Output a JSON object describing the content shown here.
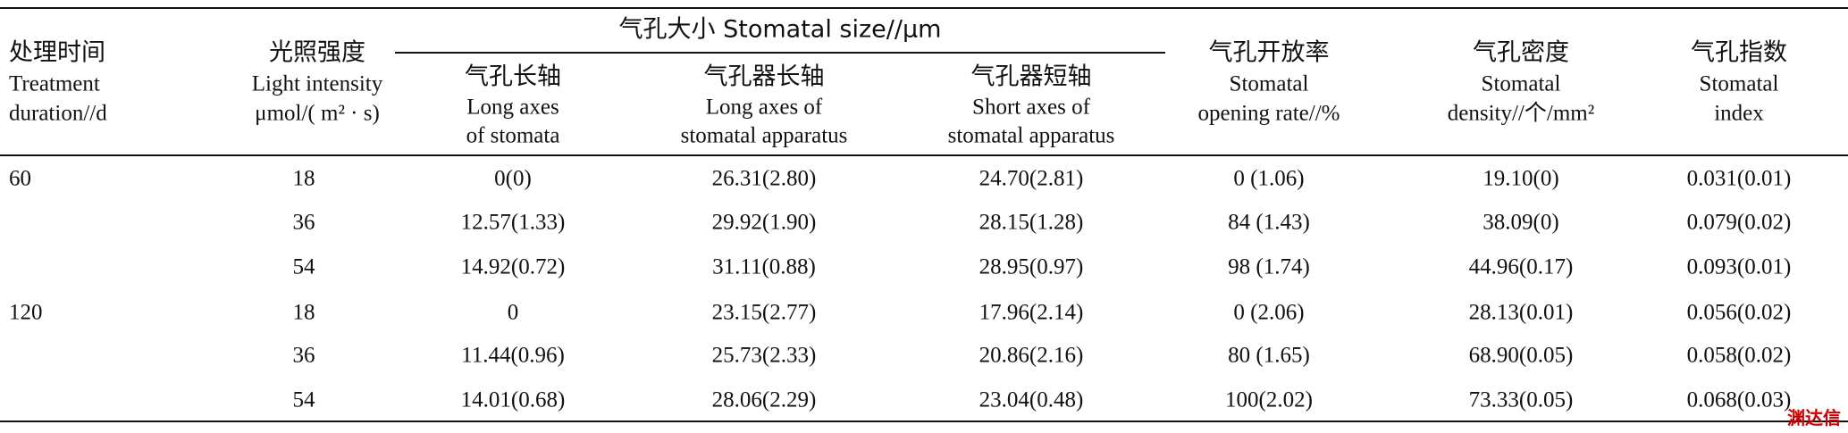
{
  "table": {
    "columns": [
      {
        "lines": [
          "处理时间",
          "Treatment",
          "duration//d"
        ]
      },
      {
        "lines": [
          "光照强度",
          "Light intensity",
          "μmol/( m² · s)"
        ]
      },
      {
        "lines": [
          "气孔长轴",
          "Long axes",
          "of stomata"
        ]
      },
      {
        "lines": [
          "气孔器长轴",
          "Long axes of",
          "stomatal apparatus"
        ]
      },
      {
        "lines": [
          "气孔器短轴",
          "Short axes of",
          "stomatal apparatus"
        ]
      },
      {
        "lines": [
          "气孔开放率",
          "Stomatal",
          "opening rate//%"
        ]
      },
      {
        "lines": [
          "气孔密度",
          "Stomatal",
          "density//个/mm²"
        ]
      },
      {
        "lines": [
          "气孔指数",
          "Stomatal",
          "index"
        ]
      }
    ],
    "group_header": "气孔大小 Stomatal size//μm",
    "rows": [
      [
        "60",
        "18",
        "0(0)",
        "26.31(2.80)",
        "24.70(2.81)",
        "0 (1.06)",
        "19.10(0)",
        "0.031(0.01)"
      ],
      [
        null,
        "36",
        "12.57(1.33)",
        "29.92(1.90)",
        "28.15(1.28)",
        "84 (1.43)",
        "38.09(0)",
        "0.079(0.02)"
      ],
      [
        null,
        "54",
        "14.92(0.72)",
        "31.11(0.88)",
        "28.95(0.97)",
        "98 (1.74)",
        "44.96(0.17)",
        "0.093(0.01)"
      ],
      [
        "120",
        "18",
        "0",
        "23.15(2.77)",
        "17.96(2.14)",
        "0 (2.06)",
        "28.13(0.01)",
        "0.056(0.02)"
      ],
      [
        null,
        "36",
        "11.44(0.96)",
        "25.73(2.33)",
        "20.86(2.16)",
        "80 (1.65)",
        "68.90(0.05)",
        "0.058(0.02)"
      ],
      [
        null,
        "54",
        "14.01(0.68)",
        "28.06(2.29)",
        "23.04(0.48)",
        "100(2.02)",
        "73.33(0.05)",
        "0.068(0.03)"
      ]
    ]
  },
  "watermark": "渊达信"
}
